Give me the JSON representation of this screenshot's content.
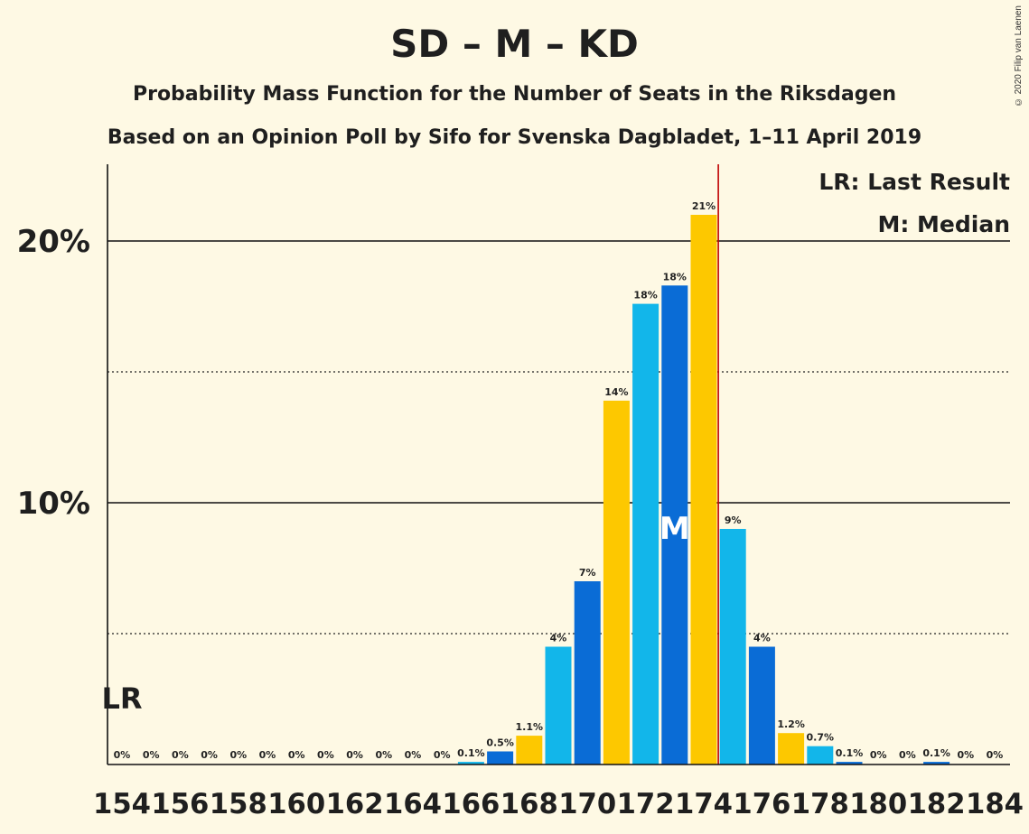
{
  "header": {
    "title": "SD – M – KD",
    "subtitle1": "Probability Mass Function for the Number of Seats in the Riksdagen",
    "subtitle2": "Based on an Opinion Poll by Sifo for Svenska Dagbladet, 1–11 April 2019",
    "copyright": "© 2020 Filip van Laenen"
  },
  "legend": {
    "lr": "LR: Last Result",
    "m": "M: Median"
  },
  "markers": {
    "lr_label": "LR",
    "lr_seat": 154,
    "median_label": "M",
    "median_seat": 173,
    "majority_line_seat": 174.5
  },
  "colors": {
    "light_blue": "#12b6ea",
    "dark_blue": "#0a6cd6",
    "yellow": "#fdc800",
    "majority_line": "#c00000",
    "background": "#fef9e4"
  },
  "chart_data": {
    "type": "bar",
    "xlabel": "",
    "ylabel": "",
    "ylim": [
      0,
      23
    ],
    "yticks": [
      {
        "value": 10,
        "label": "10%"
      },
      {
        "value": 20,
        "label": "20%"
      }
    ],
    "dotted_gridlines": [
      5,
      15
    ],
    "xticks": [
      154,
      156,
      158,
      160,
      162,
      164,
      166,
      168,
      170,
      172,
      174,
      176,
      178,
      180,
      182,
      184
    ],
    "categories": [
      154,
      155,
      156,
      157,
      158,
      159,
      160,
      161,
      162,
      163,
      164,
      165,
      166,
      167,
      168,
      169,
      170,
      171,
      172,
      173,
      174,
      175,
      176,
      177,
      178,
      179,
      180,
      181,
      182,
      183,
      184
    ],
    "values": [
      0,
      0,
      0,
      0,
      0,
      0,
      0,
      0,
      0,
      0,
      0,
      0,
      0.1,
      0.5,
      1.1,
      4.5,
      7.0,
      13.9,
      17.6,
      18.3,
      21.0,
      9.0,
      4.5,
      1.2,
      0.7,
      0.1,
      0,
      0,
      0.1,
      0,
      0
    ],
    "labels": [
      "0%",
      "0%",
      "0%",
      "0%",
      "0%",
      "0%",
      "0%",
      "0%",
      "0%",
      "0%",
      "0%",
      "0%",
      "0.1%",
      "0.5%",
      "1.1%",
      "4%",
      "7%",
      "14%",
      "18%",
      "18%",
      "21%",
      "9%",
      "4%",
      "1.2%",
      "0.7%",
      "0.1%",
      "0%",
      "0%",
      "0.1%",
      "0%",
      "0%"
    ],
    "bar_colors": [
      "light_blue",
      "dark_blue",
      "yellow",
      "light_blue",
      "dark_blue",
      "yellow",
      "light_blue",
      "dark_blue",
      "yellow",
      "light_blue",
      "dark_blue",
      "yellow",
      "light_blue",
      "dark_blue",
      "yellow",
      "light_blue",
      "dark_blue",
      "yellow",
      "light_blue",
      "dark_blue",
      "yellow",
      "light_blue",
      "dark_blue",
      "yellow",
      "light_blue",
      "dark_blue",
      "yellow",
      "light_blue",
      "dark_blue",
      "yellow",
      "light_blue"
    ]
  }
}
